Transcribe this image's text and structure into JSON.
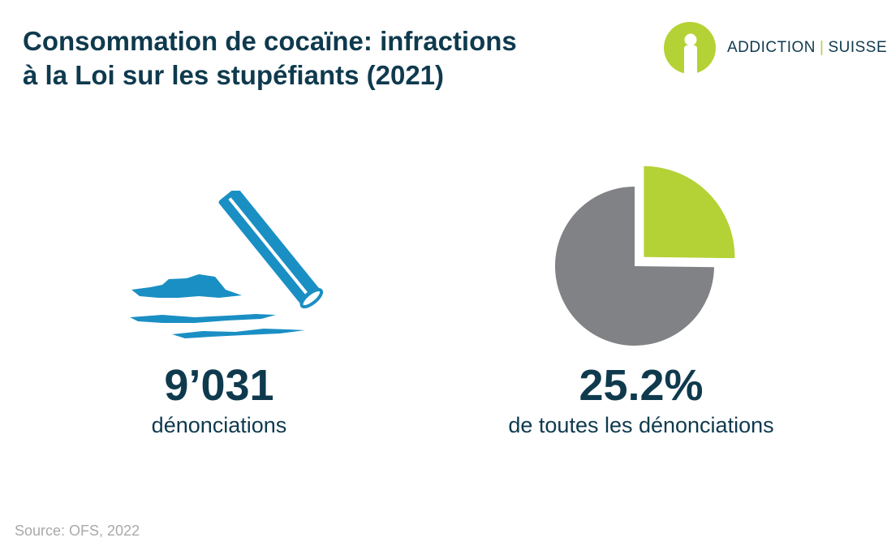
{
  "header": {
    "title_line1": "Consommation de cocaïne: infractions",
    "title_line2": "à la Loi sur les stupéfiants (2021)"
  },
  "logo": {
    "word1": "ADDICTION",
    "separator": "|",
    "word2": "SUISSE",
    "icon": "person-circle-logo-icon"
  },
  "colors": {
    "title": "#0f3a4e",
    "accent_green": "#b4d235",
    "icon_blue": "#1a8fc4",
    "pie_grey": "#808285",
    "source_grey": "#a9a9a9"
  },
  "stats": {
    "left": {
      "value": "9’031",
      "label": "dénonciations",
      "icon": "cocaine-lines-straw-icon"
    },
    "right": {
      "value": "25.2%",
      "label": "de toutes les dénonciations"
    }
  },
  "chart_data": {
    "type": "pie",
    "values": [
      25.2,
      74.8
    ],
    "colors": [
      "#b4d235",
      "#808285"
    ],
    "exploded": [
      true,
      false
    ]
  },
  "source": "Source: OFS, 2022"
}
